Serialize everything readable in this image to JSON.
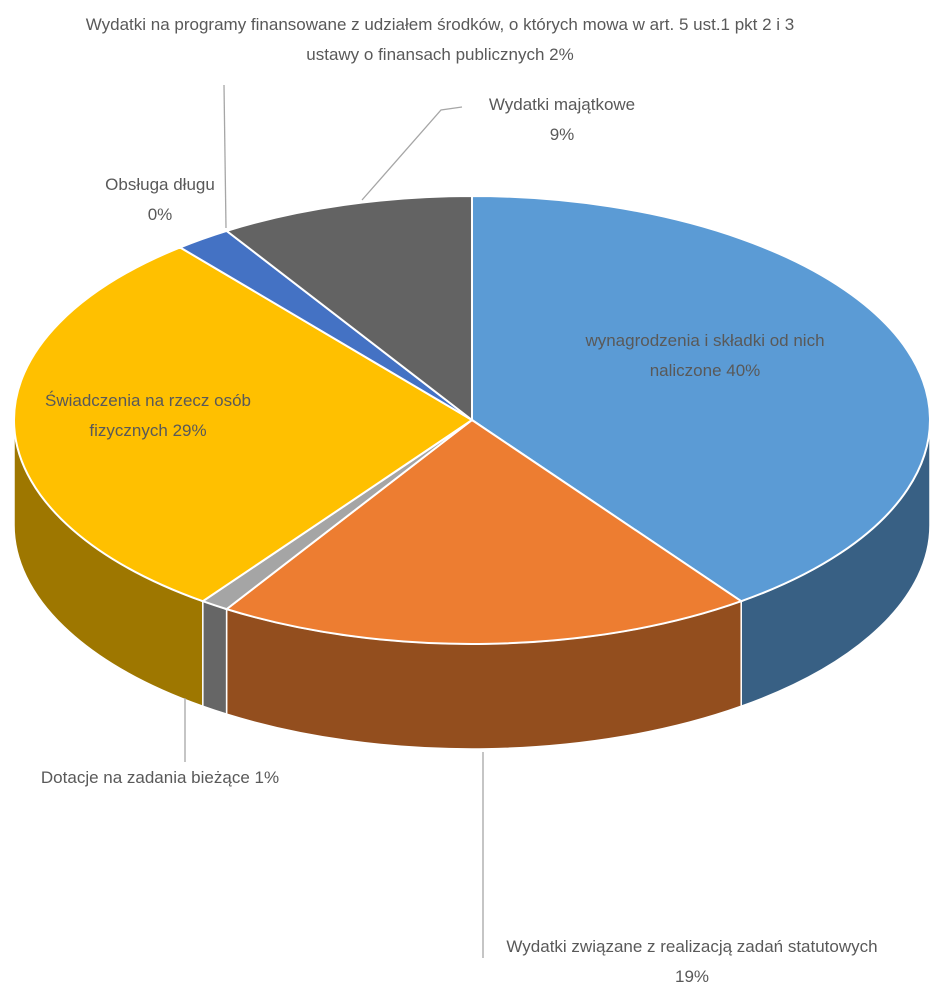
{
  "chart_data": {
    "type": "pie3d",
    "categories": [
      "wynagrodzenia i składki od nich naliczone",
      "Wydatki związane z realizacją zadań statutowych",
      "Dotacje na zadania bieżące",
      "Świadczenia na rzecz osób fizycznych",
      "Obsługa długu",
      "Wydatki na programy finansowane z udziałem środków, o których mowa w art. 5 ust.1 pkt 2 i 3 ustawy o finansach publicznych",
      "Wydatki majątkowe"
    ],
    "values": [
      40,
      19,
      1,
      29,
      0,
      2,
      9
    ],
    "value_labels": [
      "40%",
      "19%",
      "1%",
      "29%",
      "0%",
      "2%",
      "9%"
    ],
    "colors": [
      "#5b9bd5",
      "#ed7d31",
      "#a5a5a5",
      "#ffc000",
      "#264478",
      "#4472c4",
      "#636363"
    ]
  }
}
